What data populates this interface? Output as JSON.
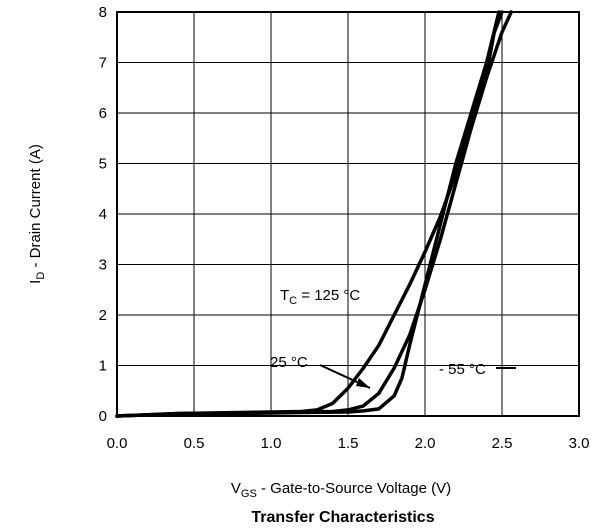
{
  "chart_data": {
    "type": "line",
    "title": "Transfer Characteristics",
    "xlabel": {
      "main": "V",
      "sub": "GS",
      "rest": " - Gate-to-Source Voltage (V)"
    },
    "ylabel": {
      "main": "I",
      "sub": "D",
      "rest": " - Drain Current (A)"
    },
    "xlim": [
      0,
      3
    ],
    "ylim": [
      0,
      8
    ],
    "x_ticks": [
      "0.0",
      "0.5",
      "1.0",
      "1.5",
      "2.0",
      "2.5",
      "3.0"
    ],
    "y_ticks": [
      "0",
      "1",
      "2",
      "3",
      "4",
      "5",
      "6",
      "7",
      "8"
    ],
    "grid": true,
    "series": [
      {
        "x": [
          0,
          0.4,
          0.8,
          1.0,
          1.2,
          1.3,
          1.4,
          1.5,
          1.6,
          1.7,
          1.8,
          1.9,
          2.0,
          2.1,
          2.2,
          2.3,
          2.4,
          2.45,
          2.5
        ],
        "y": [
          0,
          0.05,
          0.07,
          0.08,
          0.09,
          0.12,
          0.25,
          0.55,
          0.95,
          1.4,
          2.0,
          2.6,
          3.25,
          3.95,
          4.8,
          5.8,
          6.8,
          7.6,
          8.0
        ]
      },
      {
        "x": [
          0,
          0.4,
          0.8,
          1.0,
          1.2,
          1.4,
          1.5,
          1.6,
          1.7,
          1.8,
          1.9,
          2.0,
          2.1,
          2.2,
          2.3,
          2.4,
          2.5,
          2.56
        ],
        "y": [
          0,
          0.05,
          0.06,
          0.07,
          0.08,
          0.09,
          0.12,
          0.2,
          0.45,
          0.95,
          1.6,
          2.5,
          3.5,
          4.6,
          5.7,
          6.7,
          7.6,
          8.0
        ]
      },
      {
        "x": [
          0,
          0.4,
          0.8,
          1.0,
          1.2,
          1.5,
          1.6,
          1.7,
          1.8,
          1.85,
          1.9,
          2.0,
          2.1,
          2.2,
          2.3,
          2.4,
          2.48
        ],
        "y": [
          0,
          0.04,
          0.05,
          0.06,
          0.07,
          0.08,
          0.1,
          0.14,
          0.4,
          0.75,
          1.4,
          2.6,
          3.8,
          5.0,
          6.0,
          7.0,
          8.0
        ]
      }
    ],
    "annotations": {
      "tc_label": {
        "main": "T",
        "sub": "C",
        "rest": " = 125 °C"
      },
      "label_25": "25 °C",
      "label_m55": "- 55 °C"
    }
  }
}
